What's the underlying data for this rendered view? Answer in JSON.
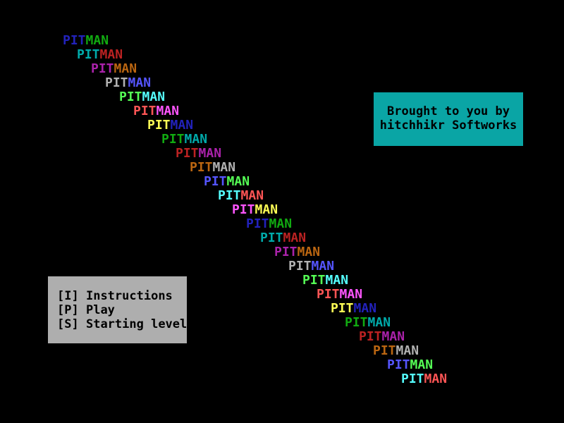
{
  "game_title": "PITMAN",
  "cascade": {
    "pit_text": "PIT",
    "man_text": "MAN",
    "palette": {
      "blue": "#2222bb",
      "green": "#11aa11",
      "cyan": "#00aaaa",
      "red": "#bb2222",
      "magenta": "#aa22aa",
      "brown": "#bb6611",
      "light_gray": "#b2b2b2",
      "light_blue": "#5555ff",
      "light_green": "#55ff55",
      "light_cyan": "#55ffff",
      "light_red": "#ff5555",
      "light_magenta": "#ff55ff",
      "yellow": "#ffff55"
    },
    "lines": [
      {
        "pit": "#2222bb",
        "man": "#11aa11"
      },
      {
        "pit": "#00aaaa",
        "man": "#bb2222"
      },
      {
        "pit": "#aa22aa",
        "man": "#bb6611"
      },
      {
        "pit": "#b2b2b2",
        "man": "#5555ff"
      },
      {
        "pit": "#55ff55",
        "man": "#55ffff"
      },
      {
        "pit": "#ff5555",
        "man": "#ff55ff"
      },
      {
        "pit": "#ffff55",
        "man": "#2222bb"
      },
      {
        "pit": "#11aa11",
        "man": "#00aaaa"
      },
      {
        "pit": "#bb2222",
        "man": "#aa22aa"
      },
      {
        "pit": "#bb6611",
        "man": "#b2b2b2"
      },
      {
        "pit": "#5555ff",
        "man": "#55ff55"
      },
      {
        "pit": "#55ffff",
        "man": "#ff5555"
      },
      {
        "pit": "#ff55ff",
        "man": "#ffff55"
      },
      {
        "pit": "#2222bb",
        "man": "#11aa11"
      },
      {
        "pit": "#00aaaa",
        "man": "#bb2222"
      },
      {
        "pit": "#aa22aa",
        "man": "#bb6611"
      },
      {
        "pit": "#b2b2b2",
        "man": "#5555ff"
      },
      {
        "pit": "#55ff55",
        "man": "#55ffff"
      },
      {
        "pit": "#ff5555",
        "man": "#ff55ff"
      },
      {
        "pit": "#ffff55",
        "man": "#2222bb"
      },
      {
        "pit": "#11aa11",
        "man": "#00aaaa"
      },
      {
        "pit": "#bb2222",
        "man": "#aa22aa"
      },
      {
        "pit": "#bb6611",
        "man": "#b2b2b2"
      },
      {
        "pit": "#5555ff",
        "man": "#55ff55"
      },
      {
        "pit": "#55ffff",
        "man": "#ff5555"
      }
    ]
  },
  "credits_box": {
    "bg_color": "#0aa5a5",
    "text_color": "#000000",
    "line1": "Brought to you by",
    "line2": "hitchhikr Softworks"
  },
  "menu_box": {
    "bg_color": "#aeaeae",
    "text_color": "#000000",
    "items": [
      {
        "key": "[I]",
        "label": "Instructions"
      },
      {
        "key": "[P]",
        "label": "Play"
      },
      {
        "key": "[S]",
        "label": "Starting level"
      }
    ]
  }
}
